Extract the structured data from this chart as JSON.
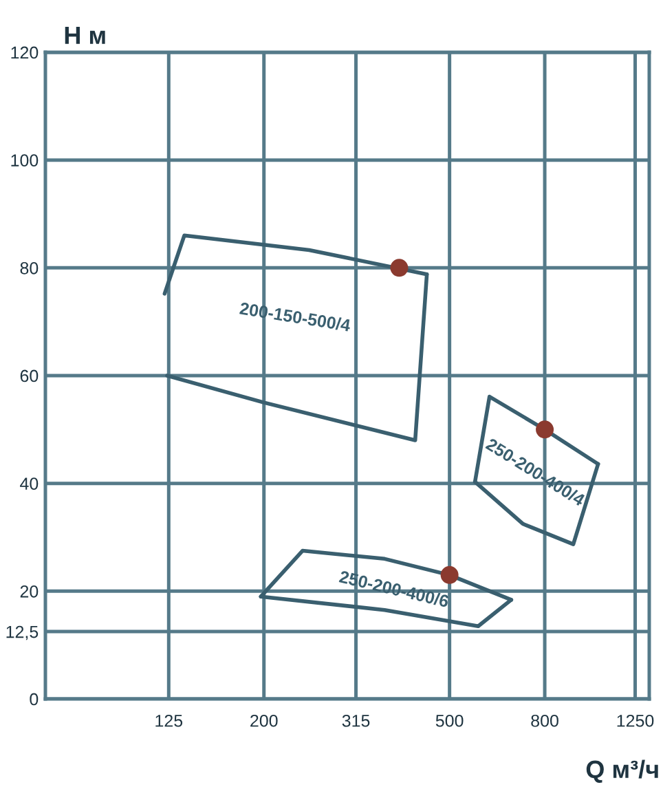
{
  "chart_data": {
    "type": "line",
    "xlabel": "Q м³/ч",
    "ylabel": "H м",
    "log": "x",
    "xlim": [
      68,
      1340
    ],
    "xticks": [
      125,
      200,
      315,
      500,
      800,
      1250
    ],
    "ylim": [
      0,
      120
    ],
    "yticks": [
      0,
      {
        "value": 12.5,
        "label": "12,5"
      },
      20,
      40,
      60,
      80,
      100,
      120
    ],
    "grid": true,
    "legend": false,
    "marker": "none",
    "line_style": "solid",
    "series": [
      {
        "name": "200-150-500/4",
        "color": "#3a5f6f",
        "x": [
          122.5,
          135,
          250,
          447
        ],
        "values": [
          75.2,
          86,
          83.3,
          78.8
        ]
      },
      {
        "color": "#3a5f6f",
        "x": [
          124,
          200,
          422,
          447
        ],
        "values": [
          60,
          55,
          48,
          78.8
        ]
      },
      {
        "name": "250-200-400/4",
        "color": "#3a5f6f",
        "x": [
          567,
          609,
          800,
          1041
        ],
        "values": [
          40.3,
          56.1,
          50,
          43.6
        ]
      },
      {
        "color": "#3a5f6f",
        "x": [
          567,
          718,
          921,
          1041
        ],
        "values": [
          40.3,
          32.5,
          28.7,
          43.6
        ]
      },
      {
        "name": "250-200-400/6",
        "color": "#3a5f6f",
        "x": [
          197,
          242,
          363,
          500,
          678
        ],
        "values": [
          19.0,
          27.5,
          26,
          23,
          18.4
        ]
      },
      {
        "color": "#3a5f6f",
        "x": [
          197,
          363,
          576,
          678
        ],
        "values": [
          19.0,
          16.5,
          13.5,
          18.4
        ]
      },
      {
        "type": "scatter",
        "color": "#8b3a2f",
        "marker": "circle",
        "x": [
          390,
          800,
          500
        ],
        "values": [
          80,
          50,
          23
        ]
      }
    ]
  }
}
